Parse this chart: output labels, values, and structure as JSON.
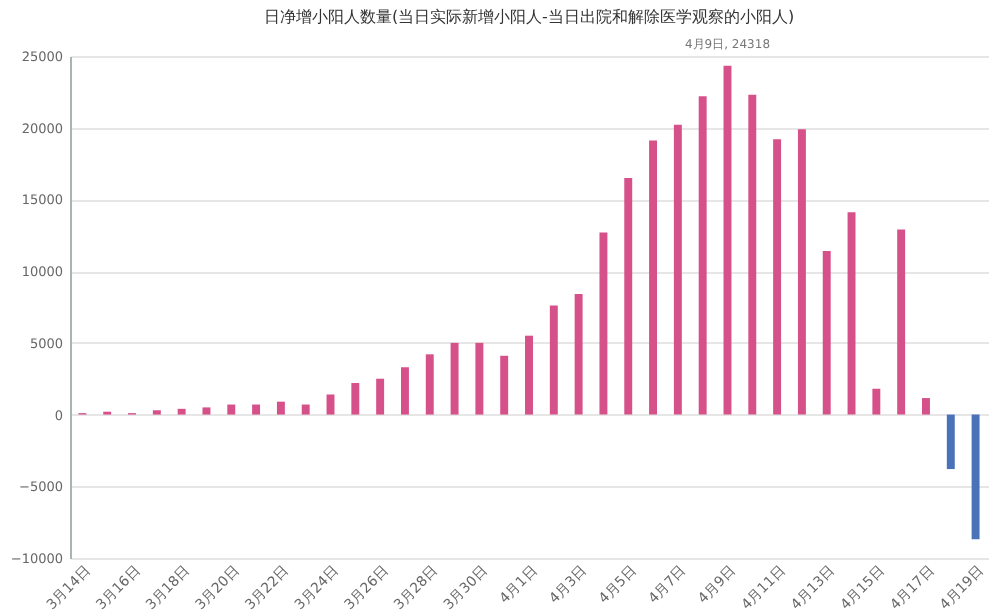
{
  "chart_data": {
    "type": "bar",
    "title": "日净增小阳人数量(当日实际新增小阳人-当日出院和解除医学观察的小阳人)",
    "categories": [
      "3月14日",
      null,
      "3月16日",
      null,
      "3月18日",
      null,
      "3月20日",
      null,
      "3月22日",
      null,
      "3月24日",
      null,
      "3月26日",
      null,
      "3月28日",
      null,
      "3月30日",
      null,
      "4月1日",
      null,
      "4月3日",
      null,
      "4月5日",
      null,
      "4月7日",
      null,
      "4月9日",
      null,
      "4月11日",
      null,
      "4月13日",
      null,
      "4月15日",
      null,
      "4月17日",
      null,
      "4月19日"
    ],
    "values": [
      100,
      200,
      100,
      300,
      400,
      500,
      700,
      700,
      900,
      700,
      1400,
      2200,
      2500,
      3300,
      4200,
      5000,
      5000,
      4100,
      5500,
      7600,
      8400,
      12700,
      16500,
      19100,
      20200,
      22200,
      24318,
      22300,
      19200,
      19900,
      11400,
      14100,
      1800,
      12900,
      1150,
      -3800,
      -8700
    ],
    "colors": [
      "#d6508a",
      "#d6508a",
      "#d6508a",
      "#d6508a",
      "#d6508a",
      "#d6508a",
      "#d6508a",
      "#d6508a",
      "#d6508a",
      "#d6508a",
      "#d6508a",
      "#d6508a",
      "#d6508a",
      "#d6508a",
      "#d6508a",
      "#d6508a",
      "#d6508a",
      "#d6508a",
      "#d6508a",
      "#d6508a",
      "#d6508a",
      "#d6508a",
      "#d6508a",
      "#d6508a",
      "#d6508a",
      "#d6508a",
      "#d6508a",
      "#d6508a",
      "#d6508a",
      "#d6508a",
      "#d6508a",
      "#d6508a",
      "#d6508a",
      "#d6508a",
      "#d6508a",
      "#4a72b8",
      "#4a72b8"
    ],
    "ylim": [
      -10000,
      25000
    ],
    "yticks": [
      -10000,
      -5000,
      0,
      5000,
      10000,
      15000,
      20000,
      25000
    ],
    "grid": "y",
    "annotations": [
      {
        "text": "4月9日, 24318",
        "x": "4月9日",
        "y": 24318
      }
    ]
  }
}
